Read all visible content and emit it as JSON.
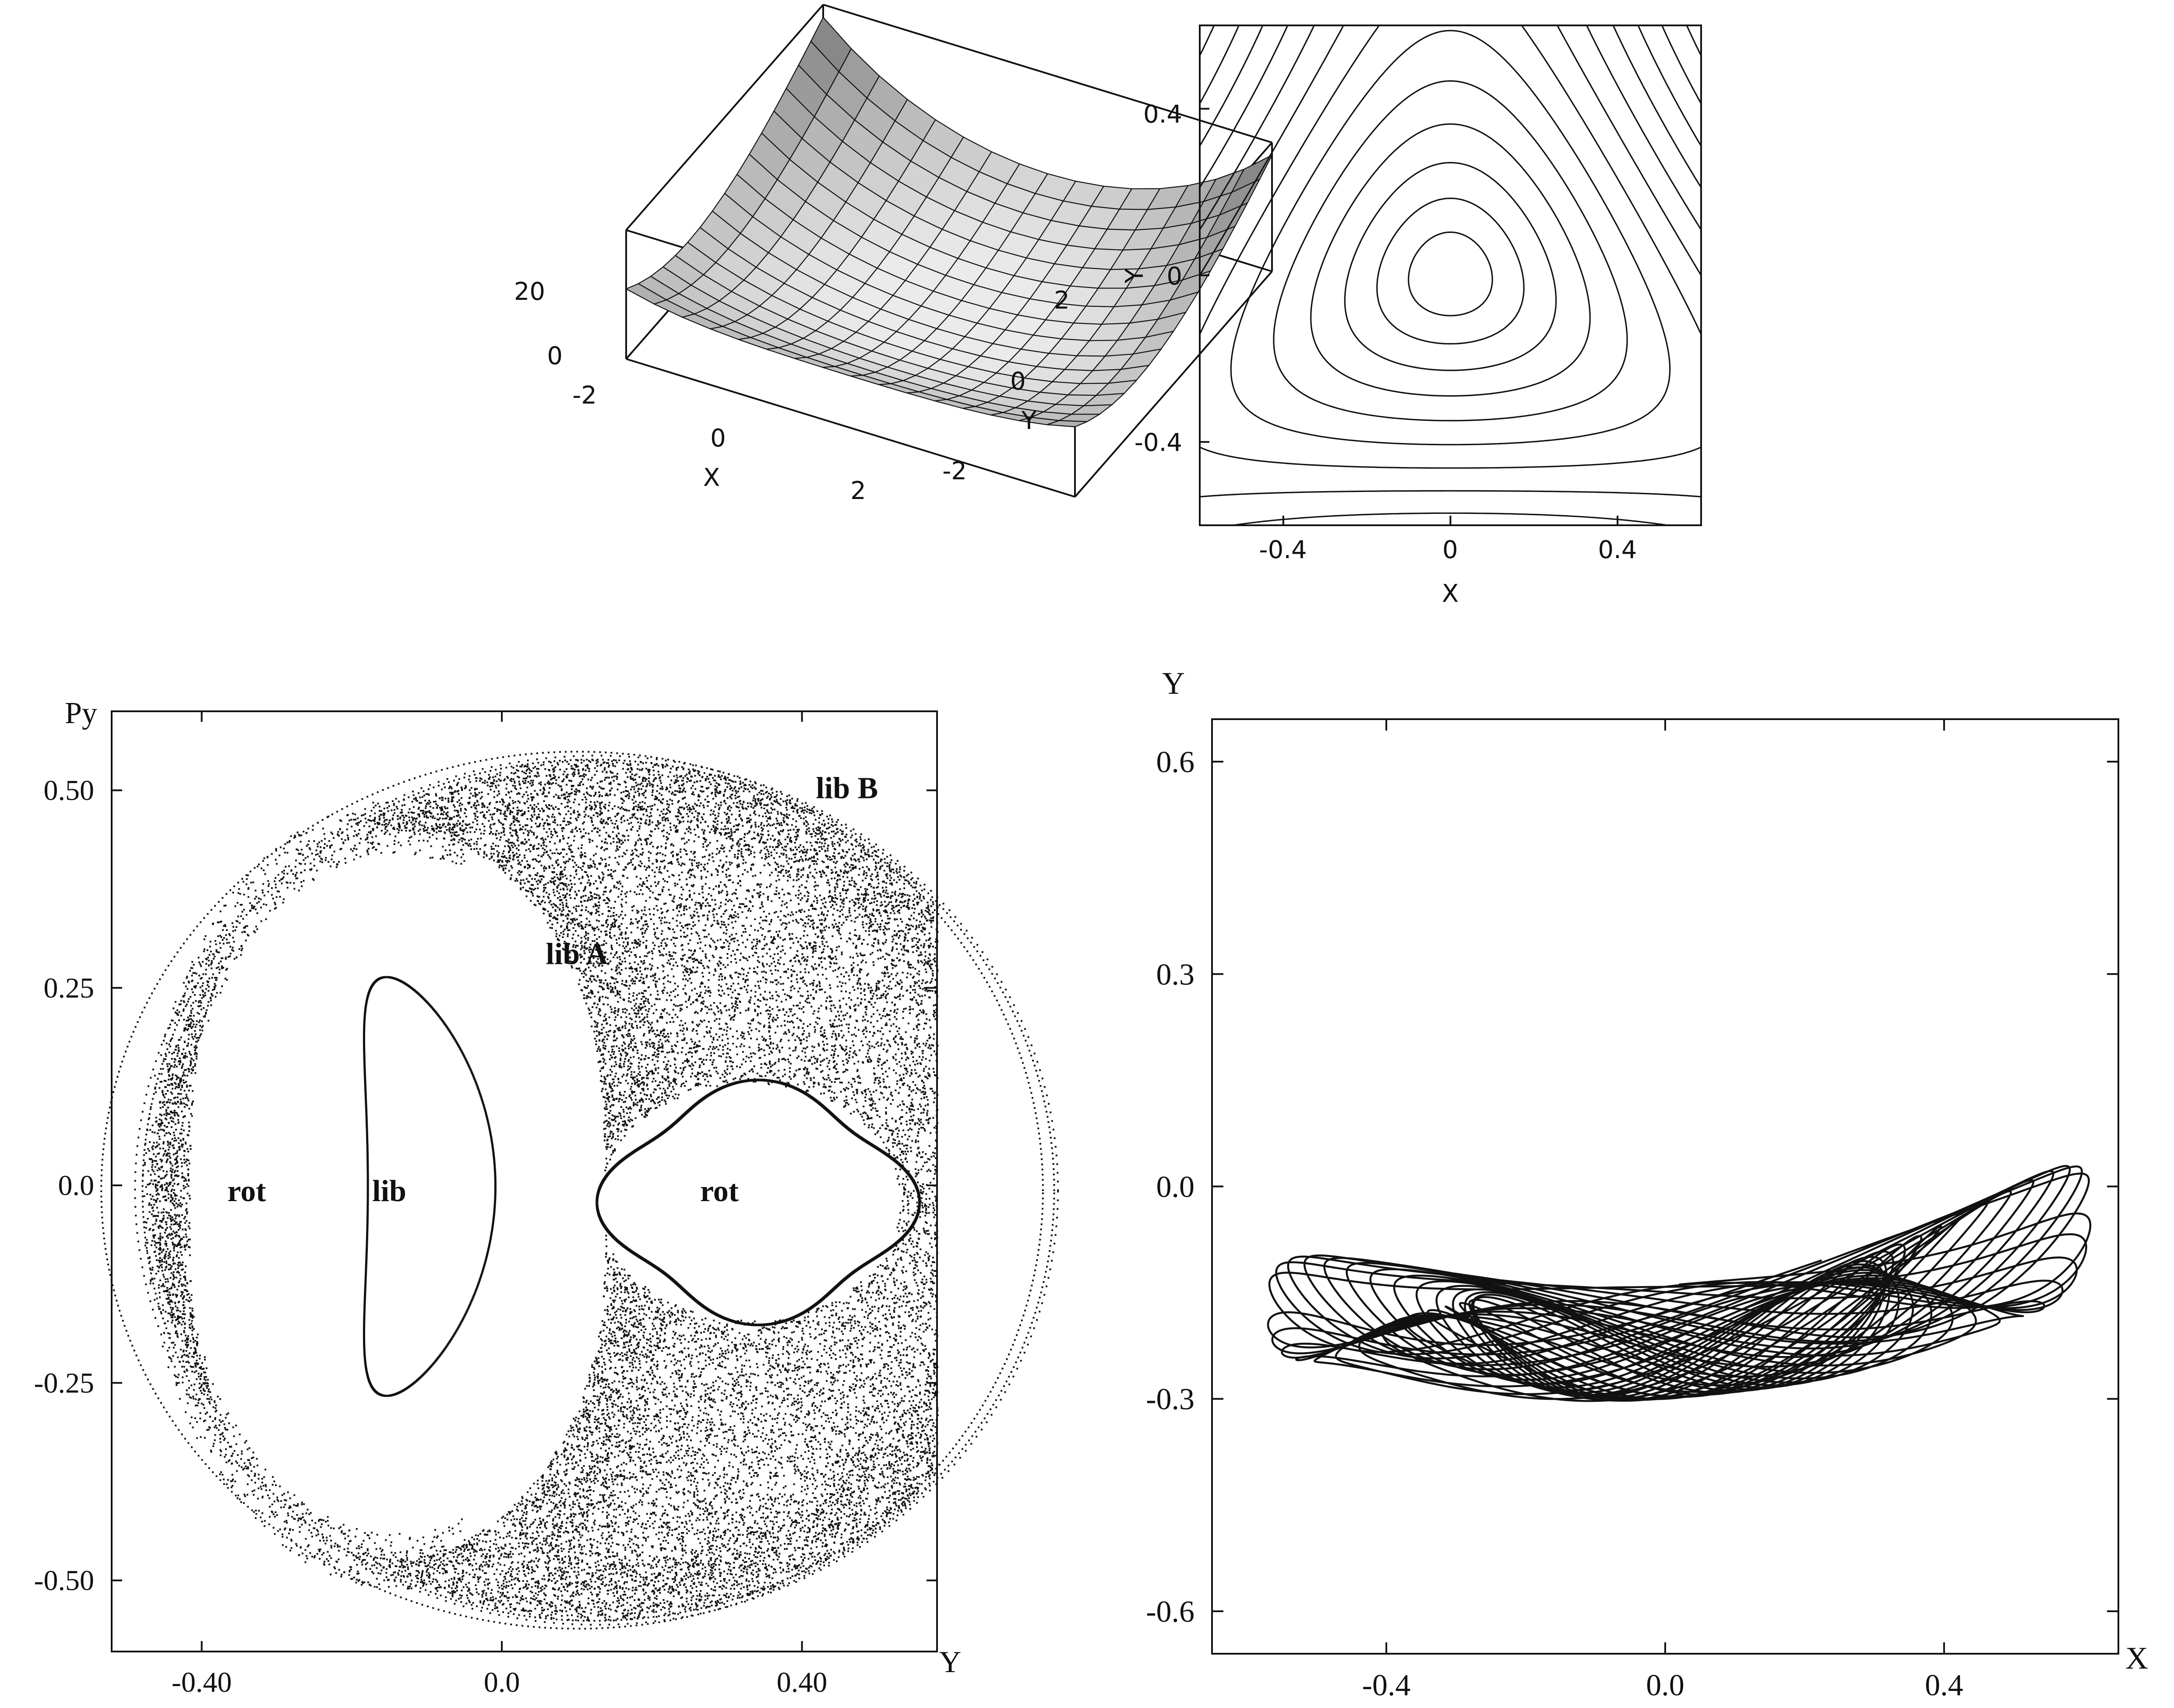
{
  "colors": {
    "ink": "#111111",
    "background": "#ffffff"
  },
  "chart_data": [
    {
      "id": "surface",
      "type": "surface",
      "description_only_in_image": false,
      "x_ticks": [
        "-2",
        "0",
        "2"
      ],
      "y_ticks": [
        "-2",
        "0",
        "2"
      ],
      "z_ticks": [
        "0",
        "20"
      ],
      "xlabel": "X",
      "ylabel": "Y",
      "x_range": [
        -2.5,
        2.5
      ],
      "y_range": [
        -2.5,
        2.5
      ],
      "z_range": [
        0,
        32
      ]
    },
    {
      "id": "contour",
      "type": "contour",
      "x_ticks": [
        -0.4,
        0,
        0.4
      ],
      "y_ticks": [
        -0.4,
        0,
        0.4
      ],
      "x_tick_labels": [
        "-0.4",
        "0",
        "0.4"
      ],
      "y_tick_labels": [
        "-0.4",
        "0",
        "0.4"
      ],
      "xlabel": "X",
      "ylabel": "Y",
      "xlim": [
        -0.6,
        0.6
      ],
      "ylim": [
        -0.6,
        0.6
      ],
      "levels": [
        0.005,
        0.015,
        0.03,
        0.05,
        0.075,
        0.105,
        0.14,
        0.18,
        0.225,
        0.275,
        0.33,
        0.39,
        0.46,
        0.54,
        0.63,
        0.73,
        0.84
      ]
    },
    {
      "id": "poincare",
      "type": "scatter",
      "xlabel": "Y",
      "ylabel": "Py",
      "xlim": [
        -0.52,
        0.58
      ],
      "ylim": [
        -0.59,
        0.6
      ],
      "x_ticks": [
        -0.4,
        0.0,
        0.4
      ],
      "y_ticks": [
        -0.5,
        -0.25,
        0.0,
        0.25,
        0.5
      ],
      "x_tick_labels": [
        "-0.40",
        "0.0",
        "0.40"
      ],
      "y_tick_labels": [
        "-0.50",
        "-0.25",
        "0.0",
        "0.25",
        "0.50"
      ],
      "annotations": [
        {
          "text": "lib B",
          "x": 0.46,
          "y": 0.49
        },
        {
          "text": "lib A",
          "x": 0.1,
          "y": 0.28
        },
        {
          "text": "rot",
          "x": -0.34,
          "y": -0.02
        },
        {
          "text": "lib",
          "x": -0.15,
          "y": -0.02
        },
        {
          "text": "rot",
          "x": 0.29,
          "y": -0.02
        }
      ],
      "regions": {
        "chaotic_annulus": {
          "cx": 0.14,
          "cy": -0.01,
          "rx_outer": 0.6,
          "ry_outer": 0.545,
          "rx_inner": 0.45,
          "ry_inner": 0.47
        },
        "outer_invariant_curves": [
          {
            "cx": 0.1,
            "cy": -0.005,
            "rx": 0.635,
            "ry": 0.555
          },
          {
            "cx": 0.12,
            "cy": -0.005,
            "rx": 0.6,
            "ry": 0.545
          }
        ],
        "rot_island_right": {
          "cx": 0.34,
          "cy": -0.02,
          "rx": 0.215,
          "ry": 0.155
        },
        "lib_island_left": {
          "cx": -0.13,
          "cy": 0.0,
          "rx": 0.11,
          "ry": 0.26
        }
      }
    },
    {
      "id": "orbit",
      "type": "line",
      "xlabel": "X",
      "ylabel": "Y",
      "xlim": [
        -0.65,
        0.65
      ],
      "ylim": [
        -0.66,
        0.66
      ],
      "x_ticks": [
        -0.4,
        0.0,
        0.4
      ],
      "y_ticks": [
        -0.6,
        -0.3,
        0.0,
        0.3,
        0.6
      ],
      "x_tick_labels": [
        "-0.4",
        "0.0",
        "0.4"
      ],
      "y_tick_labels": [
        "-0.6",
        "-0.3",
        "0.0",
        "0.3",
        "0.6"
      ],
      "trajectory": {
        "x_amplitude": 0.59,
        "omega_x": 1.0,
        "omega_y": 2.03,
        "y_center": -0.06,
        "y_amplitude": 0.14,
        "phase": 1.5708,
        "t_max": 170
      }
    }
  ]
}
